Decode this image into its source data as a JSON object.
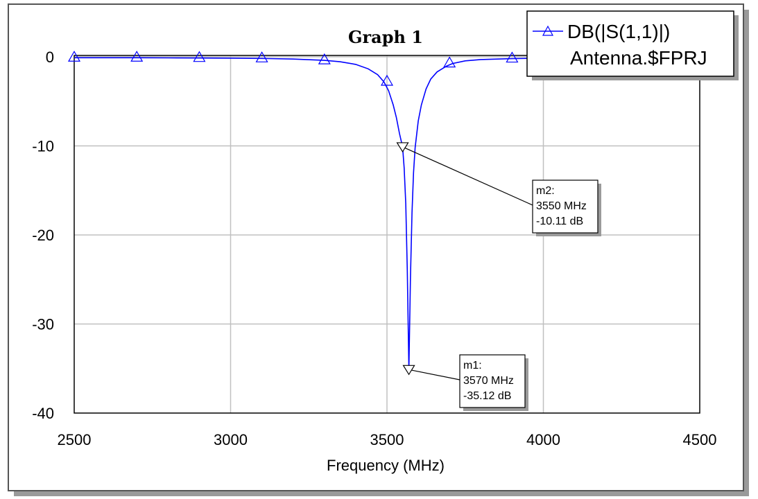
{
  "chart_data": {
    "type": "line",
    "title": "Graph 1",
    "xlabel": "Frequency (MHz)",
    "ylabel": "",
    "xlim": [
      2500,
      4500
    ],
    "ylim": [
      -40,
      3
    ],
    "xticks": [
      2500,
      3000,
      3500,
      4000,
      4500
    ],
    "yticks": [
      0,
      -10,
      -20,
      -30,
      -40
    ],
    "grid": true,
    "legend_placement": "top-right",
    "series": [
      {
        "name": "DB(|S(1,1)|)",
        "color": "#0000ff",
        "marker": "triangle-up",
        "x": [
          2500,
          2600,
          2700,
          2800,
          2900,
          3000,
          3100,
          3200,
          3300,
          3350,
          3400,
          3440,
          3470,
          3490,
          3505,
          3520,
          3530,
          3540,
          3550,
          3555,
          3560,
          3565,
          3570,
          3575,
          3580,
          3585,
          3590,
          3600,
          3610,
          3625,
          3640,
          3660,
          3690,
          3710,
          3750,
          3800,
          3900,
          4000,
          4100
        ],
        "values": [
          -0.1,
          -0.1,
          -0.1,
          -0.12,
          -0.13,
          -0.15,
          -0.18,
          -0.25,
          -0.4,
          -0.55,
          -0.85,
          -1.35,
          -2.0,
          -2.8,
          -3.8,
          -5.4,
          -6.8,
          -8.6,
          -10.11,
          -12.5,
          -16.5,
          -24.0,
          -35.12,
          -25.0,
          -17.5,
          -13.0,
          -10.2,
          -7.2,
          -5.4,
          -3.6,
          -2.5,
          -1.7,
          -1.05,
          -0.75,
          -0.45,
          -0.3,
          -0.2,
          -0.15,
          -0.13
        ],
        "marker_x": [
          2500,
          2700,
          2900,
          3100,
          3300,
          3500,
          3700,
          3900
        ],
        "marker_values": [
          -0.1,
          -0.1,
          -0.13,
          -0.18,
          -0.4,
          -2.8,
          -0.75,
          -0.2
        ]
      }
    ],
    "legend": {
      "line1": "DB(|S(1,1)|)",
      "line2": "Antenna.$FPRJ"
    },
    "markers": [
      {
        "name": "m1",
        "x": 3570,
        "y": -35.12,
        "lines": [
          "m1:",
          "3570 MHz",
          "-35.12 dB"
        ]
      },
      {
        "name": "m2",
        "x": 3550,
        "y": -10.11,
        "lines": [
          "m2:",
          "3550 MHz",
          "-10.11 dB"
        ]
      }
    ]
  }
}
